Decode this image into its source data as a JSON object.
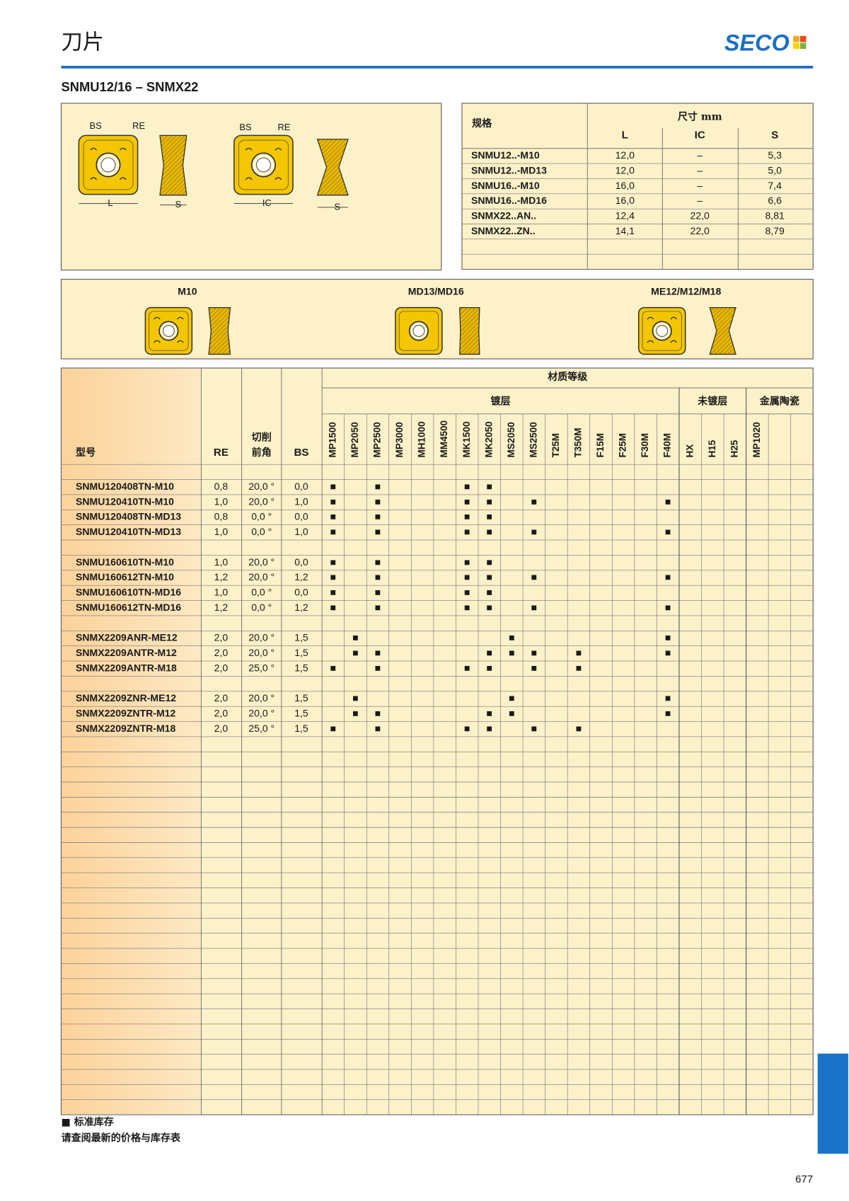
{
  "header": {
    "title": "刀片",
    "brand": "SECO",
    "subtitle": "SNMU12/16 – SNMX22"
  },
  "figure": {
    "labels": [
      "BS",
      "RE",
      "L",
      "S",
      "BS",
      "RE",
      "IC",
      "S"
    ]
  },
  "dimensions": {
    "spec_header": "规格",
    "size_header": "尺寸 mm",
    "columns": [
      "L",
      "IC",
      "S"
    ],
    "rows": [
      [
        "SNMU12..-M10",
        "12,0",
        "–",
        "5,3"
      ],
      [
        "SNMU12..-MD13",
        "12,0",
        "–",
        "5,0"
      ],
      [
        "SNMU16..-M10",
        "16,0",
        "–",
        "7,4"
      ],
      [
        "SNMU16..-MD16",
        "16,0",
        "–",
        "6,6"
      ],
      [
        "SNMX22..AN..",
        "12,4",
        "22,0",
        "8,81"
      ],
      [
        "SNMX22..ZN..",
        "14,1",
        "22,0",
        "8,79"
      ]
    ]
  },
  "variants": [
    "M10",
    "MD13/MD16",
    "ME12/M12/M18"
  ],
  "grades_table": {
    "title": "材质等级",
    "model_header": "型号",
    "re_header": "RE",
    "angle_header": [
      "切削",
      "前角"
    ],
    "bs_header": "BS",
    "groups": [
      {
        "name": "镀层",
        "grades": [
          "MP1500",
          "MP2050",
          "MP2500",
          "MP3000",
          "MH1000",
          "MM4500",
          "MK1500",
          "MK2050",
          "MS2050",
          "MS2500",
          "T25M",
          "T350M",
          "F15M",
          "F25M",
          "F30M",
          "F40M"
        ]
      },
      {
        "name": "未镀层",
        "grades": [
          "HX",
          "H15",
          "H25"
        ]
      },
      {
        "name": "金属陶瓷",
        "grades": [
          "MP1020"
        ]
      }
    ],
    "row_groups": [
      [
        {
          "model": "SNMU120408TN-M10",
          "re": "0,8",
          "angle": "20,0 °",
          "bs": "0,0",
          "stock": [
            "■",
            null,
            "■",
            null,
            null,
            null,
            "■",
            "■",
            null,
            null,
            null,
            null,
            null,
            null,
            null,
            null,
            null,
            null,
            null,
            null
          ]
        },
        {
          "model": "SNMU120410TN-M10",
          "re": "1,0",
          "angle": "20,0 °",
          "bs": "1,0",
          "stock": [
            "■",
            null,
            "■",
            null,
            null,
            null,
            "■",
            "■",
            null,
            "■",
            null,
            null,
            null,
            null,
            null,
            "■",
            null,
            null,
            null,
            null
          ]
        },
        {
          "model": "SNMU120408TN-MD13",
          "re": "0,8",
          "angle": "0,0 °",
          "bs": "0,0",
          "stock": [
            "■",
            null,
            "■",
            null,
            null,
            null,
            "■",
            "■",
            null,
            null,
            null,
            null,
            null,
            null,
            null,
            null,
            null,
            null,
            null,
            null
          ]
        },
        {
          "model": "SNMU120410TN-MD13",
          "re": "1,0",
          "angle": "0,0 °",
          "bs": "1,0",
          "stock": [
            "■",
            null,
            "■",
            null,
            null,
            null,
            "■",
            "■",
            null,
            "■",
            null,
            null,
            null,
            null,
            null,
            "■",
            null,
            null,
            null,
            null
          ]
        }
      ],
      [
        {
          "model": "SNMU160610TN-M10",
          "re": "1,0",
          "angle": "20,0 °",
          "bs": "0,0",
          "stock": [
            "■",
            null,
            "■",
            null,
            null,
            null,
            "■",
            "■",
            null,
            null,
            null,
            null,
            null,
            null,
            null,
            null,
            null,
            null,
            null,
            null
          ]
        },
        {
          "model": "SNMU160612TN-M10",
          "re": "1,2",
          "angle": "20,0 °",
          "bs": "1,2",
          "stock": [
            "■",
            null,
            "■",
            null,
            null,
            null,
            "■",
            "■",
            null,
            "■",
            null,
            null,
            null,
            null,
            null,
            "■",
            null,
            null,
            null,
            null
          ]
        },
        {
          "model": "SNMU160610TN-MD16",
          "re": "1,0",
          "angle": "0,0 °",
          "bs": "0,0",
          "stock": [
            "■",
            null,
            "■",
            null,
            null,
            null,
            "■",
            "■",
            null,
            null,
            null,
            null,
            null,
            null,
            null,
            null,
            null,
            null,
            null,
            null
          ]
        },
        {
          "model": "SNMU160612TN-MD16",
          "re": "1,2",
          "angle": "0,0 °",
          "bs": "1,2",
          "stock": [
            "■",
            null,
            "■",
            null,
            null,
            null,
            "■",
            "■",
            null,
            "■",
            null,
            null,
            null,
            null,
            null,
            "■",
            null,
            null,
            null,
            null
          ]
        }
      ],
      [
        {
          "model": "SNMX2209ANR-ME12",
          "re": "2,0",
          "angle": "20,0 °",
          "bs": "1,5",
          "stock": [
            null,
            "■",
            null,
            null,
            null,
            null,
            null,
            null,
            "■",
            null,
            null,
            null,
            null,
            null,
            null,
            "■",
            null,
            null,
            null,
            null
          ]
        },
        {
          "model": "SNMX2209ANTR-M12",
          "re": "2,0",
          "angle": "20,0 °",
          "bs": "1,5",
          "stock": [
            null,
            "■",
            "■",
            null,
            null,
            null,
            null,
            "■",
            "■",
            "■",
            null,
            "■",
            null,
            null,
            null,
            "■",
            null,
            null,
            null,
            null
          ]
        },
        {
          "model": "SNMX2209ANTR-M18",
          "re": "2,0",
          "angle": "25,0 °",
          "bs": "1,5",
          "stock": [
            "■",
            null,
            "■",
            null,
            null,
            null,
            "■",
            "■",
            null,
            "■",
            null,
            "■",
            null,
            null,
            null,
            null,
            null,
            null,
            null,
            null
          ]
        }
      ],
      [
        {
          "model": "SNMX2209ZNR-ME12",
          "re": "2,0",
          "angle": "20,0 °",
          "bs": "1,5",
          "stock": [
            null,
            "■",
            null,
            null,
            null,
            null,
            null,
            null,
            "■",
            null,
            null,
            null,
            null,
            null,
            null,
            "■",
            null,
            null,
            null,
            null
          ]
        },
        {
          "model": "SNMX2209ZNTR-M12",
          "re": "2,0",
          "angle": "20,0 °",
          "bs": "1,5",
          "stock": [
            null,
            "■",
            "■",
            null,
            null,
            null,
            null,
            "■",
            "■",
            null,
            null,
            null,
            null,
            null,
            null,
            "■",
            null,
            null,
            null,
            null
          ]
        },
        {
          "model": "SNMX2209ZNTR-M18",
          "re": "2,0",
          "angle": "25,0 °",
          "bs": "1,5",
          "stock": [
            "■",
            null,
            "■",
            null,
            null,
            null,
            "■",
            "■",
            null,
            "■",
            null,
            "■",
            null,
            null,
            null,
            null,
            null,
            null,
            null,
            null
          ]
        }
      ]
    ]
  },
  "footer": {
    "legend": "■ 标准库存",
    "note": "请查阅最新的价格与库存表",
    "page_number": "677"
  }
}
